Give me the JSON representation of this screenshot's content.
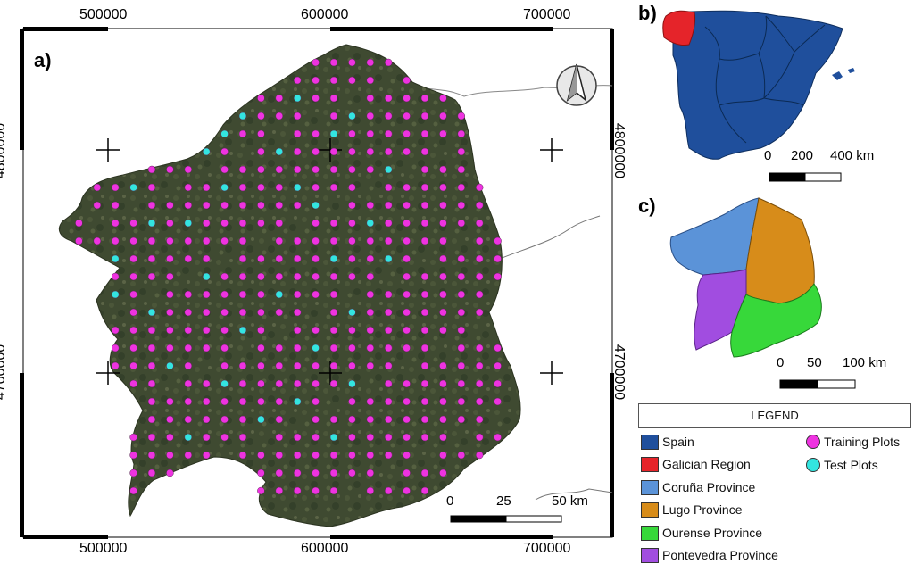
{
  "panels": {
    "a": "a)",
    "b": "b)",
    "c": "c)"
  },
  "main_map": {
    "x_ticks_top": [
      "500000",
      "600000",
      "700000"
    ],
    "x_ticks_bottom": [
      "500000",
      "600000",
      "700000"
    ],
    "y_ticks_left": [
      "4800000",
      "4700000"
    ],
    "y_ticks_right": [
      "4800000",
      "4700000"
    ],
    "scale_labels": [
      "0",
      "25",
      "50 km"
    ]
  },
  "spain_map": {
    "scale_labels": [
      "0",
      "200",
      "400 km"
    ]
  },
  "galicia_map": {
    "scale_labels": [
      "0",
      "50",
      "100 km"
    ]
  },
  "legend": {
    "title": "LEGEND",
    "areas": [
      {
        "label": "Spain",
        "color": "#1f4f9c"
      },
      {
        "label": "Galician Region",
        "color": "#e5242a"
      },
      {
        "label": "Coruña Province",
        "color": "#5b93d8"
      },
      {
        "label": "Lugo Province",
        "color": "#d78c1a"
      },
      {
        "label": "Ourense Province",
        "color": "#37d83a"
      },
      {
        "label": "Pontevedra Province",
        "color": "#a14de0"
      }
    ],
    "points": [
      {
        "label": "Training Plots",
        "color": "#ee33e0"
      },
      {
        "label": "Test Plots",
        "color": "#33e5e0"
      }
    ]
  },
  "colors": {
    "terrain": "#3f4a31",
    "terrain_light": "#566245",
    "frame": "#000000"
  }
}
